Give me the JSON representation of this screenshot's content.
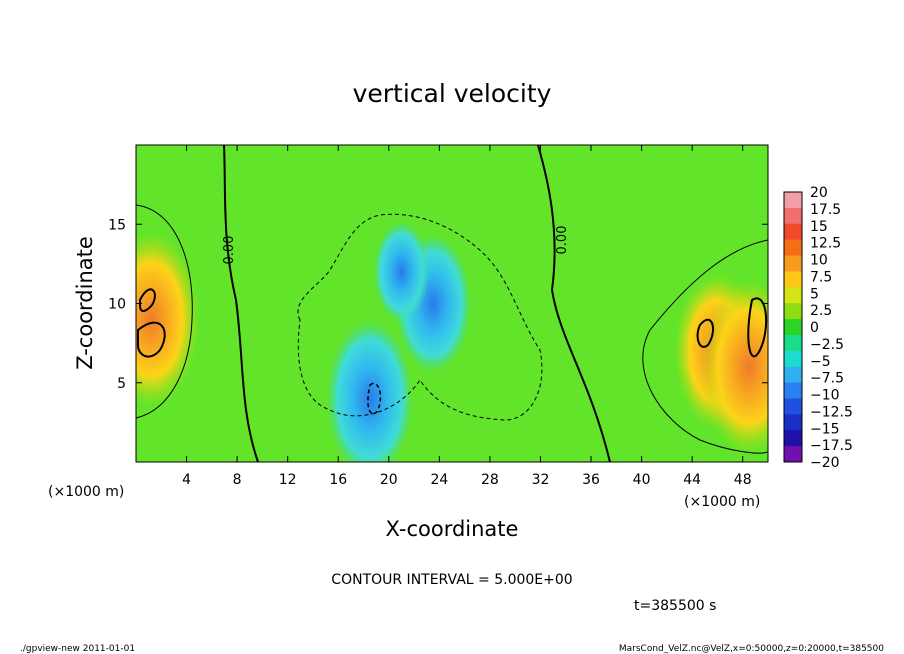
{
  "chart_data": {
    "type": "heatmap",
    "title": "vertical velocity",
    "xlabel": "X-coordinate",
    "ylabel": "Z-coordinate",
    "x_unit": "(×1000 m)",
    "z_unit": "(×1000 m)",
    "xlim": [
      0,
      50
    ],
    "ylim": [
      0,
      20
    ],
    "x_ticks": [
      "4",
      "8",
      "12",
      "16",
      "20",
      "24",
      "28",
      "32",
      "36",
      "40",
      "44",
      "48"
    ],
    "y_ticks": [
      "5",
      "10",
      "15"
    ],
    "contour_label": "0.00",
    "contour_interval": "CONTOUR INTERVAL = 5.000E+00",
    "time": "t=385500 s",
    "colorbar": {
      "labels": [
        "20",
        "17.5",
        "15",
        "12.5",
        "10",
        "7.5",
        "5",
        "2.5",
        "0",
        "−2.5",
        "−5",
        "−7.5",
        "−10",
        "−12.5",
        "−15",
        "−17.5",
        "−20"
      ],
      "colors": [
        "#f2a0a8",
        "#f07070",
        "#f04a2a",
        "#f46e18",
        "#f89a1c",
        "#fcc818",
        "#d4e414",
        "#90dc14",
        "#2dd428",
        "#1cdc88",
        "#1cdcd0",
        "#30b0f0",
        "#2a80f0",
        "#2050e0",
        "#1830c8",
        "#2010a8",
        "#7010b0"
      ]
    },
    "features": [
      {
        "x": 1.2,
        "z": 9,
        "value": 12
      },
      {
        "x": 46,
        "z": 7,
        "value": 10
      },
      {
        "x": 48.5,
        "z": 6,
        "value": 12
      },
      {
        "x": 18.5,
        "z": 4,
        "value": -10
      },
      {
        "x": 23.5,
        "z": 10,
        "value": -8
      },
      {
        "x": 21,
        "z": 12,
        "value": -4
      }
    ]
  },
  "footer": {
    "left": "./gpview-new   2011-01-01",
    "right": "MarsCond_VelZ.nc@VelZ,x=0:50000,z=0:20000,t=385500"
  }
}
